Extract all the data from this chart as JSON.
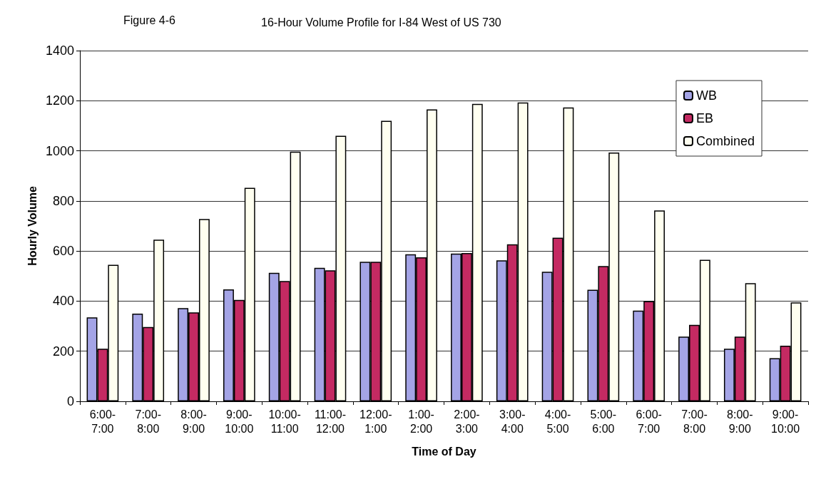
{
  "chart_data": {
    "type": "bar",
    "title": "16-Hour Volume Profile for I-84 West of US 730",
    "annotations": [
      "Figure 4-6"
    ],
    "xlabel": "Time of Day",
    "ylabel": "Hourly Volume",
    "categories": [
      "6:00-7:00",
      "7:00-8:00",
      "8:00-9:00",
      "9:00-10:00",
      "10:00-11:00",
      "11:00-12:00",
      "12:00-1:00",
      "1:00-2:00",
      "2:00-3:00",
      "3:00-4:00",
      "4:00-5:00",
      "5:00-6:00",
      "6:00-7:00",
      "7:00-8:00",
      "8:00-9:00",
      "9:00-10:00"
    ],
    "series": [
      {
        "name": "WB",
        "color": "#a4a4e6",
        "values": [
          335,
          350,
          372,
          447,
          513,
          533,
          557,
          587,
          590,
          563,
          517,
          445,
          362,
          258,
          210,
          172
        ]
      },
      {
        "name": "EB",
        "color": "#c42a62",
        "values": [
          210,
          297,
          355,
          405,
          480,
          523,
          557,
          575,
          592,
          627,
          653,
          540,
          400,
          305,
          258,
          222
        ]
      },
      {
        "name": "Combined",
        "color": "#fffff0",
        "values": [
          545,
          645,
          728,
          852,
          997,
          1060,
          1120,
          1165,
          1187,
          1193,
          1173,
          993,
          762,
          565,
          472,
          395
        ]
      }
    ],
    "ylim": [
      0,
      1400
    ],
    "yticks": [
      0,
      200,
      400,
      600,
      800,
      1000,
      1200,
      1400
    ],
    "grid": "y",
    "legend": "top right"
  }
}
